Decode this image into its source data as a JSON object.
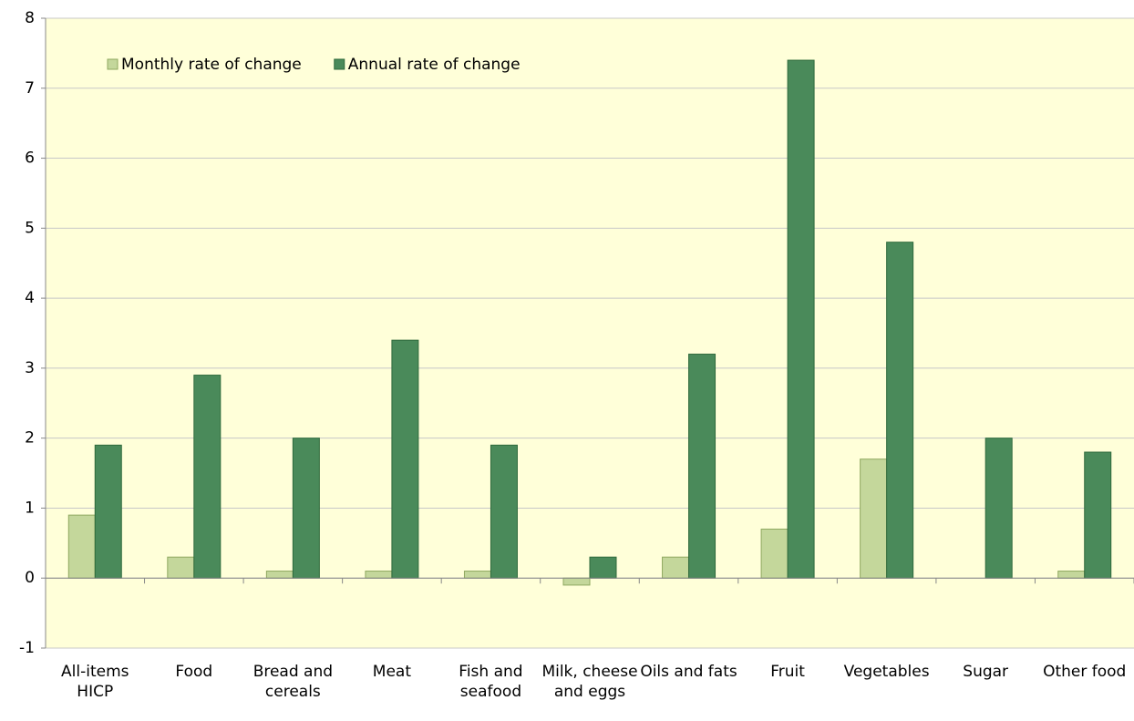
{
  "chart_data": {
    "type": "bar",
    "categories": [
      "All-items HICP",
      "Food",
      "Bread and cereals",
      "Meat",
      "Fish and seafood",
      "Milk, cheese and eggs",
      "Oils and fats",
      "Fruit",
      "Vegetables",
      "Sugar",
      "Other food"
    ],
    "series": [
      {
        "name": "Monthly rate of change",
        "color": "#c4d79b",
        "values": [
          0.9,
          0.3,
          0.1,
          0.1,
          0.1,
          -0.1,
          0.3,
          0.7,
          1.7,
          0,
          0.1
        ]
      },
      {
        "name": "Annual rate of change",
        "color": "#4a8a5a",
        "values": [
          1.9,
          2.9,
          2.0,
          3.4,
          1.9,
          0.3,
          3.2,
          7.4,
          4.8,
          2.0,
          1.8
        ]
      }
    ],
    "ylim": [
      -1,
      8
    ],
    "yticks": [
      -1,
      0,
      1,
      2,
      3,
      4,
      5,
      6,
      7,
      8
    ],
    "grid": true,
    "legend": "top-left"
  }
}
